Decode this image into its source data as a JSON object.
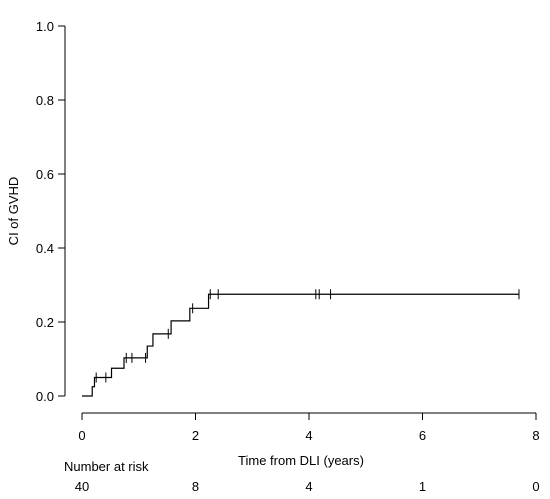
{
  "chart_data": {
    "type": "line",
    "step": true,
    "ylabel": "CI of GVHD",
    "xlabel": "Time from DLI (years)",
    "xlim": [
      0,
      8
    ],
    "ylim": [
      0,
      1
    ],
    "x_ticks": [
      0,
      2,
      4,
      6,
      8
    ],
    "x_tick_labels": [
      "0",
      "2",
      "4",
      "6",
      "8"
    ],
    "y_ticks": [
      0,
      0.2,
      0.4,
      0.6,
      0.8,
      1.0
    ],
    "y_tick_labels": [
      "0.0",
      "0.2",
      "0.4",
      "0.6",
      "0.8",
      "1.0"
    ],
    "grid": false,
    "series": [
      {
        "steps": [
          [
            0,
            0.0
          ],
          [
            0.18,
            0.0
          ],
          [
            0.18,
            0.025
          ],
          [
            0.22,
            0.025
          ],
          [
            0.22,
            0.05
          ],
          [
            0.52,
            0.05
          ],
          [
            0.52,
            0.075
          ],
          [
            0.74,
            0.075
          ],
          [
            0.74,
            0.103
          ],
          [
            1.15,
            0.103
          ],
          [
            1.15,
            0.135
          ],
          [
            1.25,
            0.135
          ],
          [
            1.25,
            0.168
          ],
          [
            1.57,
            0.168
          ],
          [
            1.57,
            0.203
          ],
          [
            1.9,
            0.203
          ],
          [
            1.9,
            0.237
          ],
          [
            2.23,
            0.237
          ],
          [
            2.23,
            0.275
          ],
          [
            7.7,
            0.275
          ]
        ],
        "censored": [
          [
            0.25,
            0.05
          ],
          [
            0.42,
            0.05
          ],
          [
            0.78,
            0.103
          ],
          [
            0.88,
            0.103
          ],
          [
            1.12,
            0.103
          ],
          [
            1.52,
            0.168
          ],
          [
            1.95,
            0.237
          ],
          [
            2.26,
            0.275
          ],
          [
            2.4,
            0.275
          ],
          [
            4.12,
            0.275
          ],
          [
            4.18,
            0.275
          ],
          [
            4.38,
            0.275
          ],
          [
            7.7,
            0.275
          ]
        ]
      }
    ],
    "risk_table": {
      "label": "Number at risk",
      "times": [
        0,
        2,
        4,
        6,
        8
      ],
      "counts": [
        "40",
        "8",
        "4",
        "1",
        "0"
      ]
    }
  }
}
